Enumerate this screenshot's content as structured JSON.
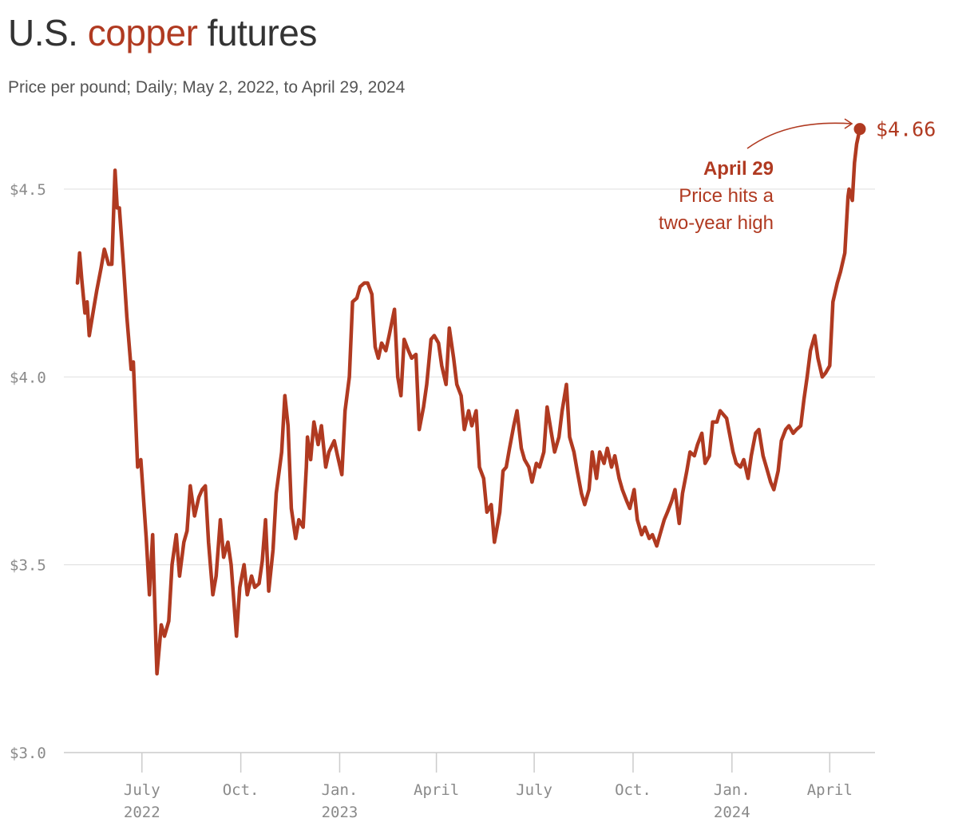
{
  "title": {
    "pre": "U.S. ",
    "accent": "copper",
    "post": " futures"
  },
  "subtitle": "Price per pound; Daily; May 2, 2022, to April 29, 2024",
  "colors": {
    "line": "#b03a21",
    "grid": "#e2e2e2",
    "axis": "#cccccc",
    "text": "#333333"
  },
  "annotation": {
    "date": "April 29",
    "line1": "Price hits a",
    "line2": "two-year high",
    "end_label": "$4.66"
  },
  "chart_data": {
    "type": "line",
    "title": "U.S. copper futures",
    "subtitle": "Price per pound; Daily; May 2, 2022, to April 29, 2024",
    "y_unit": "$ per pound",
    "ylim": [
      3.0,
      4.66
    ],
    "xlim": [
      "2022-05-02",
      "2024-04-29"
    ],
    "grid": true,
    "y_ticks": [
      {
        "value": 3.0,
        "label": "$3.0"
      },
      {
        "value": 3.5,
        "label": "$3.5"
      },
      {
        "value": 4.0,
        "label": "$4.0"
      },
      {
        "value": 4.5,
        "label": "$4.5"
      }
    ],
    "x_ticks": [
      {
        "date": "2022-07-01",
        "line1": "July",
        "line2": "2022"
      },
      {
        "date": "2022-10-01",
        "line1": "Oct.",
        "line2": ""
      },
      {
        "date": "2023-01-01",
        "line1": "Jan.",
        "line2": "2023"
      },
      {
        "date": "2023-04-01",
        "line1": "April",
        "line2": ""
      },
      {
        "date": "2023-07-01",
        "line1": "July",
        "line2": ""
      },
      {
        "date": "2023-10-01",
        "line1": "Oct.",
        "line2": ""
      },
      {
        "date": "2024-01-01",
        "line1": "Jan.",
        "line2": "2024"
      },
      {
        "date": "2024-04-01",
        "line1": "April",
        "line2": ""
      }
    ],
    "series": [
      {
        "values": [
          [
            "2022-05-02",
            4.25
          ],
          [
            "2022-05-04",
            4.33
          ],
          [
            "2022-05-06",
            4.26
          ],
          [
            "2022-05-09",
            4.17
          ],
          [
            "2022-05-11",
            4.2
          ],
          [
            "2022-05-13",
            4.11
          ],
          [
            "2022-05-17",
            4.18
          ],
          [
            "2022-05-20",
            4.23
          ],
          [
            "2022-05-24",
            4.29
          ],
          [
            "2022-05-27",
            4.34
          ],
          [
            "2022-05-31",
            4.3
          ],
          [
            "2022-06-03",
            4.3
          ],
          [
            "2022-06-06",
            4.55
          ],
          [
            "2022-06-08",
            4.45
          ],
          [
            "2022-06-10",
            4.45
          ],
          [
            "2022-06-14",
            4.29
          ],
          [
            "2022-06-17",
            4.16
          ],
          [
            "2022-06-21",
            4.02
          ],
          [
            "2022-06-23",
            4.04
          ],
          [
            "2022-06-27",
            3.76
          ],
          [
            "2022-06-30",
            3.78
          ],
          [
            "2022-07-05",
            3.57
          ],
          [
            "2022-07-08",
            3.42
          ],
          [
            "2022-07-11",
            3.58
          ],
          [
            "2022-07-14",
            3.29
          ],
          [
            "2022-07-15",
            3.21
          ],
          [
            "2022-07-19",
            3.34
          ],
          [
            "2022-07-22",
            3.31
          ],
          [
            "2022-07-26",
            3.35
          ],
          [
            "2022-07-29",
            3.5
          ],
          [
            "2022-08-02",
            3.58
          ],
          [
            "2022-08-05",
            3.47
          ],
          [
            "2022-08-09",
            3.56
          ],
          [
            "2022-08-12",
            3.59
          ],
          [
            "2022-08-15",
            3.71
          ],
          [
            "2022-08-19",
            3.63
          ],
          [
            "2022-08-23",
            3.68
          ],
          [
            "2022-08-26",
            3.7
          ],
          [
            "2022-08-29",
            3.71
          ],
          [
            "2022-09-01",
            3.56
          ],
          [
            "2022-09-05",
            3.42
          ],
          [
            "2022-09-08",
            3.47
          ],
          [
            "2022-09-12",
            3.62
          ],
          [
            "2022-09-15",
            3.52
          ],
          [
            "2022-09-19",
            3.56
          ],
          [
            "2022-09-22",
            3.5
          ],
          [
            "2022-09-27",
            3.31
          ],
          [
            "2022-09-30",
            3.44
          ],
          [
            "2022-10-04",
            3.5
          ],
          [
            "2022-10-07",
            3.42
          ],
          [
            "2022-10-11",
            3.47
          ],
          [
            "2022-10-14",
            3.44
          ],
          [
            "2022-10-18",
            3.45
          ],
          [
            "2022-10-21",
            3.51
          ],
          [
            "2022-10-24",
            3.62
          ],
          [
            "2022-10-27",
            3.43
          ],
          [
            "2022-10-31",
            3.54
          ],
          [
            "2022-11-03",
            3.69
          ],
          [
            "2022-11-08",
            3.8
          ],
          [
            "2022-11-11",
            3.95
          ],
          [
            "2022-11-14",
            3.87
          ],
          [
            "2022-11-17",
            3.65
          ],
          [
            "2022-11-21",
            3.57
          ],
          [
            "2022-11-24",
            3.62
          ],
          [
            "2022-11-28",
            3.6
          ],
          [
            "2022-12-01",
            3.76
          ],
          [
            "2022-12-02",
            3.84
          ],
          [
            "2022-12-05",
            3.78
          ],
          [
            "2022-12-08",
            3.88
          ],
          [
            "2022-12-12",
            3.82
          ],
          [
            "2022-12-15",
            3.87
          ],
          [
            "2022-12-19",
            3.76
          ],
          [
            "2022-12-22",
            3.8
          ],
          [
            "2022-12-27",
            3.83
          ],
          [
            "2022-12-30",
            3.79
          ],
          [
            "2023-01-03",
            3.74
          ],
          [
            "2023-01-06",
            3.91
          ],
          [
            "2023-01-10",
            4.0
          ],
          [
            "2023-01-13",
            4.2
          ],
          [
            "2023-01-17",
            4.21
          ],
          [
            "2023-01-20",
            4.24
          ],
          [
            "2023-01-24",
            4.25
          ],
          [
            "2023-01-27",
            4.25
          ],
          [
            "2023-01-31",
            4.22
          ],
          [
            "2023-02-03",
            4.08
          ],
          [
            "2023-02-06",
            4.05
          ],
          [
            "2023-02-09",
            4.09
          ],
          [
            "2023-02-13",
            4.07
          ],
          [
            "2023-02-16",
            4.11
          ],
          [
            "2023-02-21",
            4.18
          ],
          [
            "2023-02-24",
            4.0
          ],
          [
            "2023-02-27",
            3.95
          ],
          [
            "2023-03-02",
            4.1
          ],
          [
            "2023-03-06",
            4.07
          ],
          [
            "2023-03-09",
            4.05
          ],
          [
            "2023-03-13",
            4.06
          ],
          [
            "2023-03-16",
            3.86
          ],
          [
            "2023-03-20",
            3.92
          ],
          [
            "2023-03-23",
            3.98
          ],
          [
            "2023-03-27",
            4.1
          ],
          [
            "2023-03-30",
            4.11
          ],
          [
            "2023-04-03",
            4.09
          ],
          [
            "2023-04-06",
            4.03
          ],
          [
            "2023-04-10",
            3.98
          ],
          [
            "2023-04-13",
            4.13
          ],
          [
            "2023-04-17",
            4.05
          ],
          [
            "2023-04-20",
            3.98
          ],
          [
            "2023-04-24",
            3.95
          ],
          [
            "2023-04-27",
            3.86
          ],
          [
            "2023-05-01",
            3.91
          ],
          [
            "2023-05-04",
            3.87
          ],
          [
            "2023-05-08",
            3.91
          ],
          [
            "2023-05-11",
            3.76
          ],
          [
            "2023-05-15",
            3.73
          ],
          [
            "2023-05-18",
            3.64
          ],
          [
            "2023-05-22",
            3.66
          ],
          [
            "2023-05-25",
            3.56
          ],
          [
            "2023-05-30",
            3.64
          ],
          [
            "2023-06-02",
            3.75
          ],
          [
            "2023-06-05",
            3.76
          ],
          [
            "2023-06-08",
            3.81
          ],
          [
            "2023-06-12",
            3.87
          ],
          [
            "2023-06-15",
            3.91
          ],
          [
            "2023-06-19",
            3.81
          ],
          [
            "2023-06-22",
            3.78
          ],
          [
            "2023-06-26",
            3.76
          ],
          [
            "2023-06-29",
            3.72
          ],
          [
            "2023-07-03",
            3.77
          ],
          [
            "2023-07-06",
            3.76
          ],
          [
            "2023-07-10",
            3.8
          ],
          [
            "2023-07-13",
            3.92
          ],
          [
            "2023-07-17",
            3.85
          ],
          [
            "2023-07-20",
            3.8
          ],
          [
            "2023-07-24",
            3.84
          ],
          [
            "2023-07-27",
            3.91
          ],
          [
            "2023-07-31",
            3.98
          ],
          [
            "2023-08-03",
            3.84
          ],
          [
            "2023-08-07",
            3.8
          ],
          [
            "2023-08-10",
            3.75
          ],
          [
            "2023-08-14",
            3.69
          ],
          [
            "2023-08-17",
            3.66
          ],
          [
            "2023-08-21",
            3.7
          ],
          [
            "2023-08-24",
            3.8
          ],
          [
            "2023-08-28",
            3.73
          ],
          [
            "2023-08-31",
            3.8
          ],
          [
            "2023-09-04",
            3.77
          ],
          [
            "2023-09-07",
            3.81
          ],
          [
            "2023-09-11",
            3.76
          ],
          [
            "2023-09-14",
            3.79
          ],
          [
            "2023-09-18",
            3.73
          ],
          [
            "2023-09-21",
            3.7
          ],
          [
            "2023-09-25",
            3.67
          ],
          [
            "2023-09-28",
            3.65
          ],
          [
            "2023-10-02",
            3.7
          ],
          [
            "2023-10-05",
            3.62
          ],
          [
            "2023-10-09",
            3.58
          ],
          [
            "2023-10-12",
            3.6
          ],
          [
            "2023-10-16",
            3.57
          ],
          [
            "2023-10-19",
            3.58
          ],
          [
            "2023-10-23",
            3.55
          ],
          [
            "2023-10-26",
            3.58
          ],
          [
            "2023-10-30",
            3.62
          ],
          [
            "2023-11-02",
            3.64
          ],
          [
            "2023-11-06",
            3.67
          ],
          [
            "2023-11-09",
            3.7
          ],
          [
            "2023-11-13",
            3.61
          ],
          [
            "2023-11-16",
            3.69
          ],
          [
            "2023-11-20",
            3.75
          ],
          [
            "2023-11-23",
            3.8
          ],
          [
            "2023-11-27",
            3.79
          ],
          [
            "2023-11-30",
            3.82
          ],
          [
            "2023-12-04",
            3.85
          ],
          [
            "2023-12-07",
            3.77
          ],
          [
            "2023-12-11",
            3.79
          ],
          [
            "2023-12-14",
            3.88
          ],
          [
            "2023-12-18",
            3.88
          ],
          [
            "2023-12-21",
            3.91
          ],
          [
            "2023-12-27",
            3.89
          ],
          [
            "2023-12-29",
            3.86
          ],
          [
            "2024-01-02",
            3.8
          ],
          [
            "2024-01-05",
            3.77
          ],
          [
            "2024-01-09",
            3.76
          ],
          [
            "2024-01-12",
            3.78
          ],
          [
            "2024-01-16",
            3.73
          ],
          [
            "2024-01-19",
            3.79
          ],
          [
            "2024-01-23",
            3.85
          ],
          [
            "2024-01-26",
            3.86
          ],
          [
            "2024-01-30",
            3.79
          ],
          [
            "2024-02-02",
            3.76
          ],
          [
            "2024-02-06",
            3.72
          ],
          [
            "2024-02-09",
            3.7
          ],
          [
            "2024-02-13",
            3.75
          ],
          [
            "2024-02-16",
            3.83
          ],
          [
            "2024-02-20",
            3.86
          ],
          [
            "2024-02-23",
            3.87
          ],
          [
            "2024-02-27",
            3.85
          ],
          [
            "2024-03-01",
            3.86
          ],
          [
            "2024-03-05",
            3.87
          ],
          [
            "2024-03-08",
            3.94
          ],
          [
            "2024-03-11",
            4.0
          ],
          [
            "2024-03-14",
            4.07
          ],
          [
            "2024-03-18",
            4.11
          ],
          [
            "2024-03-21",
            4.05
          ],
          [
            "2024-03-25",
            4.0
          ],
          [
            "2024-03-28",
            4.01
          ],
          [
            "2024-04-01",
            4.03
          ],
          [
            "2024-04-04",
            4.2
          ],
          [
            "2024-04-08",
            4.25
          ],
          [
            "2024-04-11",
            4.28
          ],
          [
            "2024-04-15",
            4.33
          ],
          [
            "2024-04-18",
            4.48
          ],
          [
            "2024-04-19",
            4.5
          ],
          [
            "2024-04-22",
            4.47
          ],
          [
            "2024-04-24",
            4.57
          ],
          [
            "2024-04-26",
            4.62
          ],
          [
            "2024-04-29",
            4.66
          ]
        ]
      }
    ]
  }
}
